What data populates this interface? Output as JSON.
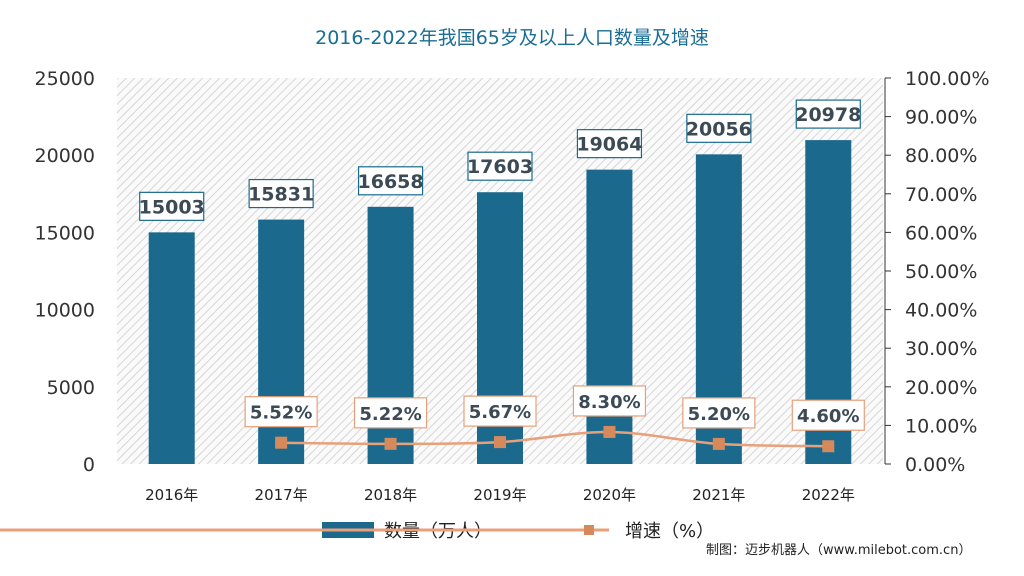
{
  "chart_data": {
    "type": "bar",
    "title": "2016-2022年我国65岁及以上人口数量及增速",
    "categories": [
      "2016年",
      "2017年",
      "2018年",
      "2019年",
      "2020年",
      "2021年",
      "2022年"
    ],
    "series": [
      {
        "name": "数量（万人）",
        "type": "bar",
        "axis": "left",
        "values": [
          15003,
          15831,
          16658,
          17603,
          19064,
          20056,
          20978
        ],
        "labels": [
          "15003",
          "15831",
          "16658",
          "17603",
          "19064",
          "20056",
          "20978"
        ]
      },
      {
        "name": "增速（%）",
        "type": "line",
        "axis": "right",
        "values": [
          null,
          5.52,
          5.22,
          5.67,
          8.3,
          5.2,
          4.6
        ],
        "labels": [
          "",
          "5.52%",
          "5.22%",
          "5.67%",
          "8.30%",
          "5.20%",
          "4.60%"
        ]
      }
    ],
    "left_axis": {
      "range": [
        0,
        25000
      ],
      "ticks": [
        "0",
        "5000",
        "10000",
        "15000",
        "20000",
        "25000"
      ]
    },
    "right_axis": {
      "range": [
        0,
        100
      ],
      "ticks": [
        "0.00%",
        "10.00%",
        "20.00%",
        "30.00%",
        "40.00%",
        "50.00%",
        "60.00%",
        "70.00%",
        "80.00%",
        "90.00%",
        "100.00%"
      ]
    },
    "legend_position": "bottom",
    "colors": {
      "bar": "#1b6a8e",
      "line": "#e8a07a",
      "marker": "#d68a5c",
      "title": "#1a6e96"
    },
    "credit": "制图：迈步机器人（www.milebot.com.cn）"
  }
}
